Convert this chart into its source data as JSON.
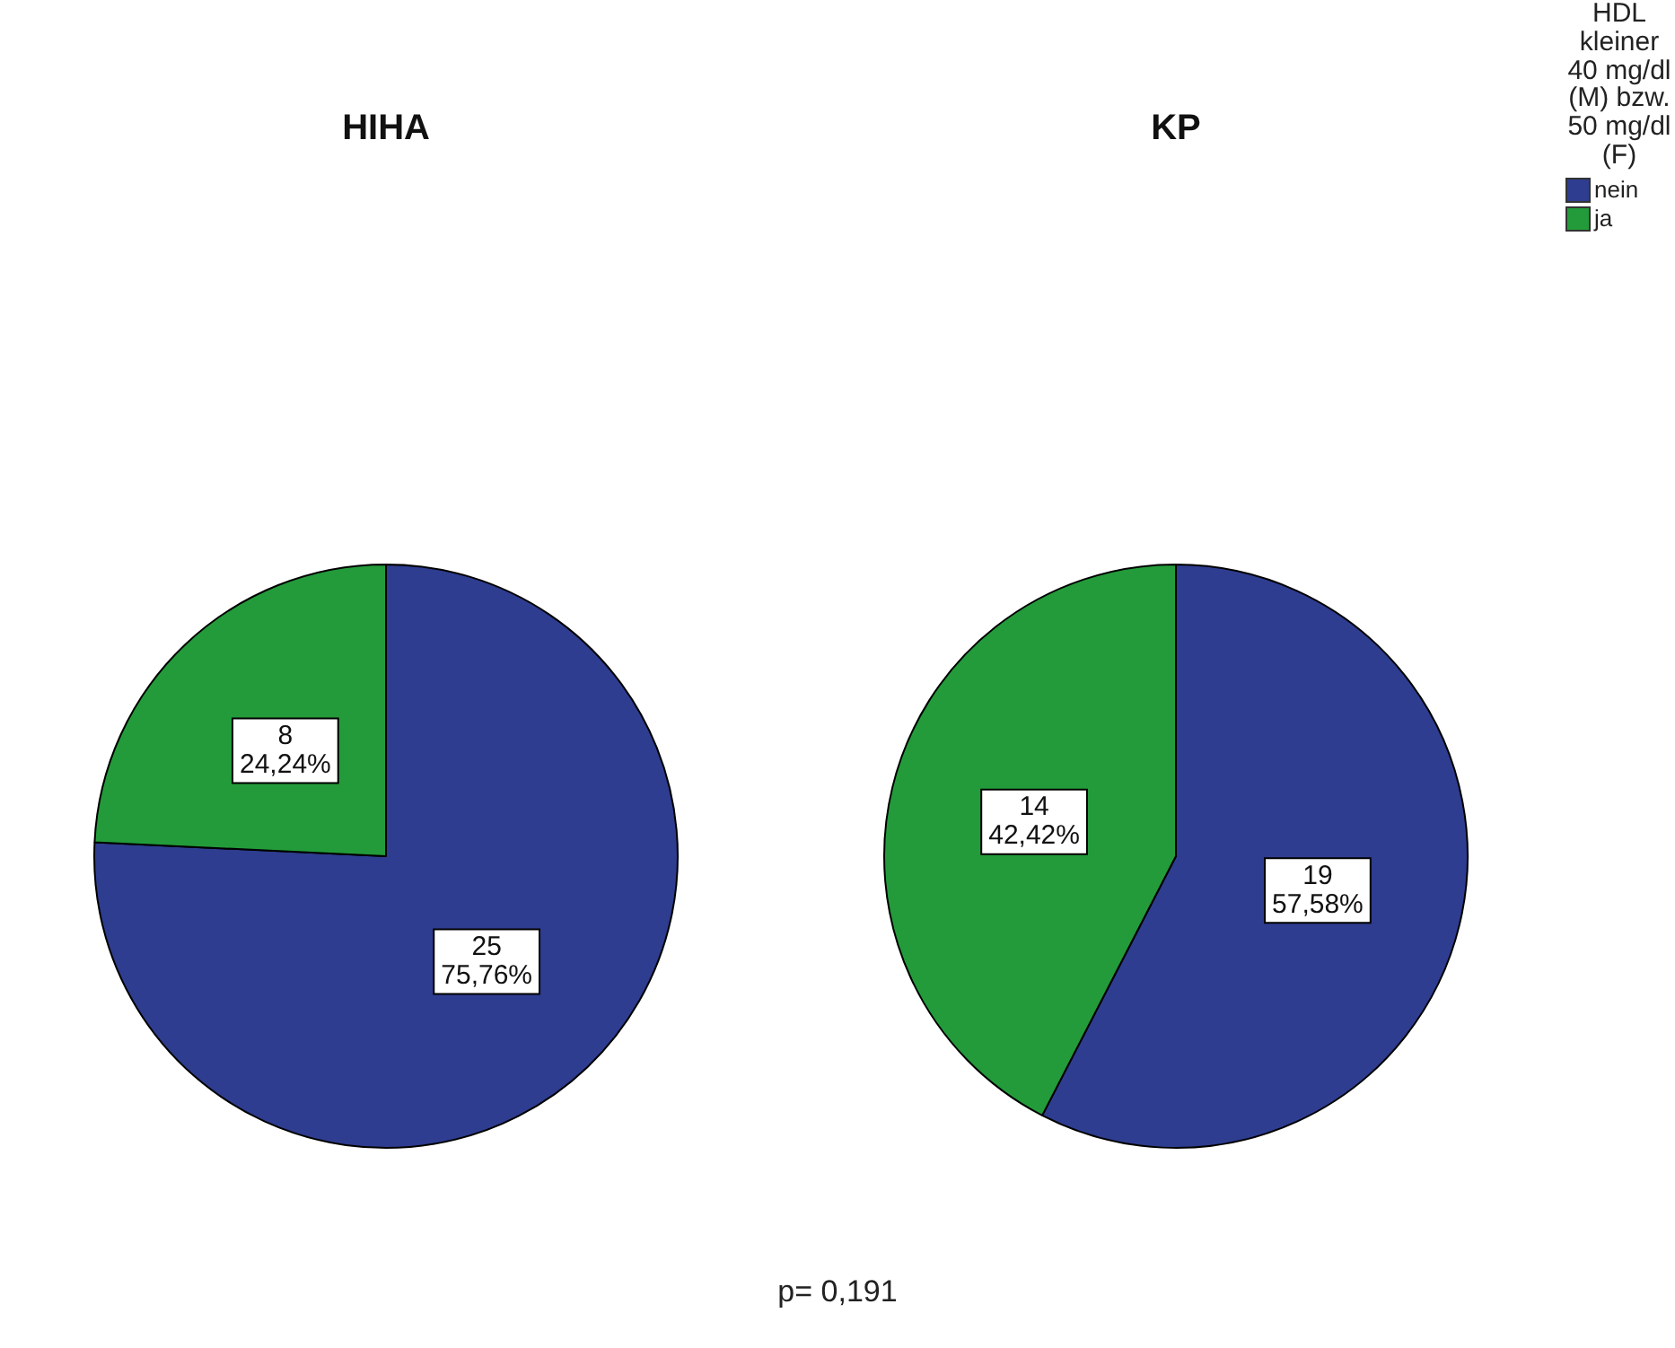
{
  "chart_data": [
    {
      "type": "pie",
      "title": "HIHA",
      "categories": [
        null,
        null
      ],
      "values": [
        25,
        8
      ],
      "colors": [
        "#2e3d8f",
        "#239b3a"
      ],
      "value_labels": [
        "25\n75,76%",
        "8\n24,24%"
      ],
      "annotations": [
        "p= 0,191"
      ]
    },
    {
      "type": "pie",
      "title": "KP",
      "categories": [
        "nein",
        "ja"
      ],
      "values": [
        19,
        14
      ],
      "colors": [
        "#2e3d8f",
        "#239b3a"
      ],
      "value_labels": [
        "19\n57,58%",
        "14\n42,42%"
      ],
      "legend": "top right",
      "legend_title": "HDL kleiner 40 mg/dl (M) bzw. 50 mg/dl (F)"
    }
  ]
}
